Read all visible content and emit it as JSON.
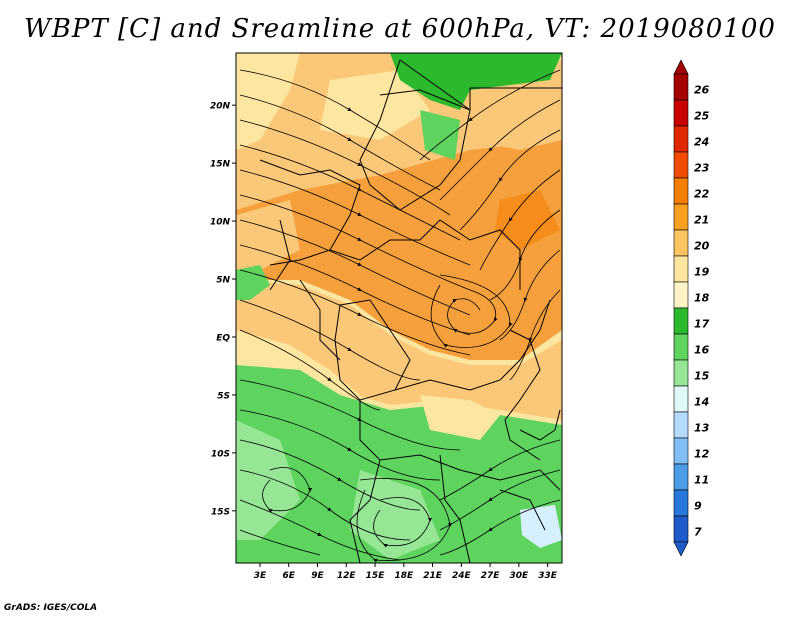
{
  "title": "WBPT [C] and Sreamline at 600hPa, VT: 2019080100",
  "credit": "GrADS: IGES/COLA",
  "map": {
    "lat_labels": [
      "20N",
      "15N",
      "10N",
      "5N",
      "EQ",
      "5S",
      "10S",
      "15S"
    ],
    "lat_values": [
      20,
      15,
      10,
      5,
      0,
      -5,
      -10,
      -15
    ],
    "lon_labels": [
      "3E",
      "6E",
      "9E",
      "12E",
      "15E",
      "18E",
      "21E",
      "24E",
      "27E",
      "30E",
      "33E"
    ],
    "lon_values": [
      3,
      6,
      9,
      12,
      15,
      18,
      21,
      24,
      27,
      30,
      33
    ],
    "lon_range": [
      0.5,
      34.5
    ],
    "lat_range": [
      -19.5,
      24.5
    ]
  },
  "colorbar": {
    "levels": [
      "26",
      "25",
      "24",
      "23",
      "22",
      "21",
      "20",
      "19",
      "18",
      "17",
      "16",
      "15",
      "14",
      "13",
      "12",
      "11",
      "9",
      "7"
    ],
    "colors": [
      "#a50000",
      "#c80000",
      "#e12800",
      "#f04b00",
      "#f57d00",
      "#f9a020",
      "#fbc460",
      "#fde6a0",
      "#fdf5c8",
      "#2db92d",
      "#5ed35e",
      "#96e696",
      "#e0f8f8",
      "#b4dcff",
      "#82bef5",
      "#4b9be6",
      "#2878dc",
      "#1e5ac8"
    ],
    "top_arrow_color": "#a00000",
    "bottom_arrow_color": "#1e5ac8"
  },
  "field_colors": {
    "orange": "#f5a03c",
    "light_orange": "#fac878",
    "yellow": "#fde6a0",
    "green": "#5ed35e",
    "dark_green": "#2db92d",
    "light_green": "#96e696",
    "pale_blue": "#d7f0ff"
  }
}
